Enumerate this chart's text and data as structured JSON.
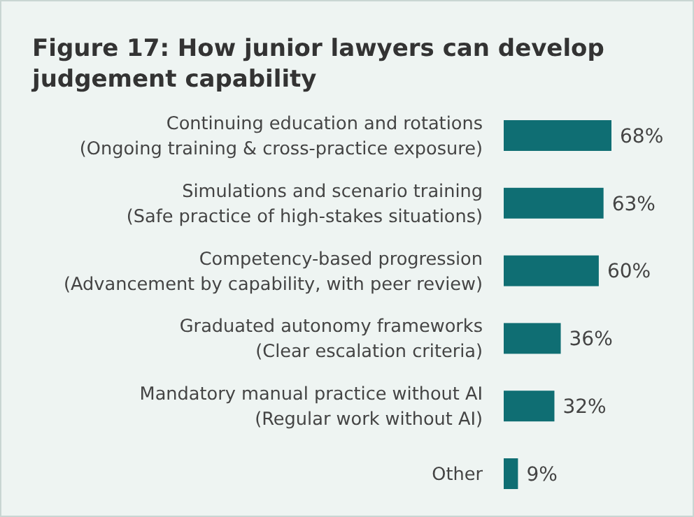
{
  "chart_data": {
    "type": "bar",
    "orientation": "horizontal",
    "title": "Figure 17: How junior lawyers can develop judgement capability",
    "categories": [
      "Continuing education and rotations\n(Ongoing training & cross-practice exposure)",
      "Simulations and scenario training\n(Safe practice of high-stakes situations)",
      "Competency-based progression\n(Advancement by capability, with peer review)",
      "Graduated autonomy frameworks\n(Clear escalation criteria)",
      "Mandatory manual practice without AI\n(Regular work without AI)",
      "Other"
    ],
    "values": [
      68,
      63,
      60,
      36,
      32,
      9
    ],
    "value_labels": [
      "68%",
      "63%",
      "60%",
      "36%",
      "32%",
      "9%"
    ],
    "color": "#0f6e73"
  }
}
